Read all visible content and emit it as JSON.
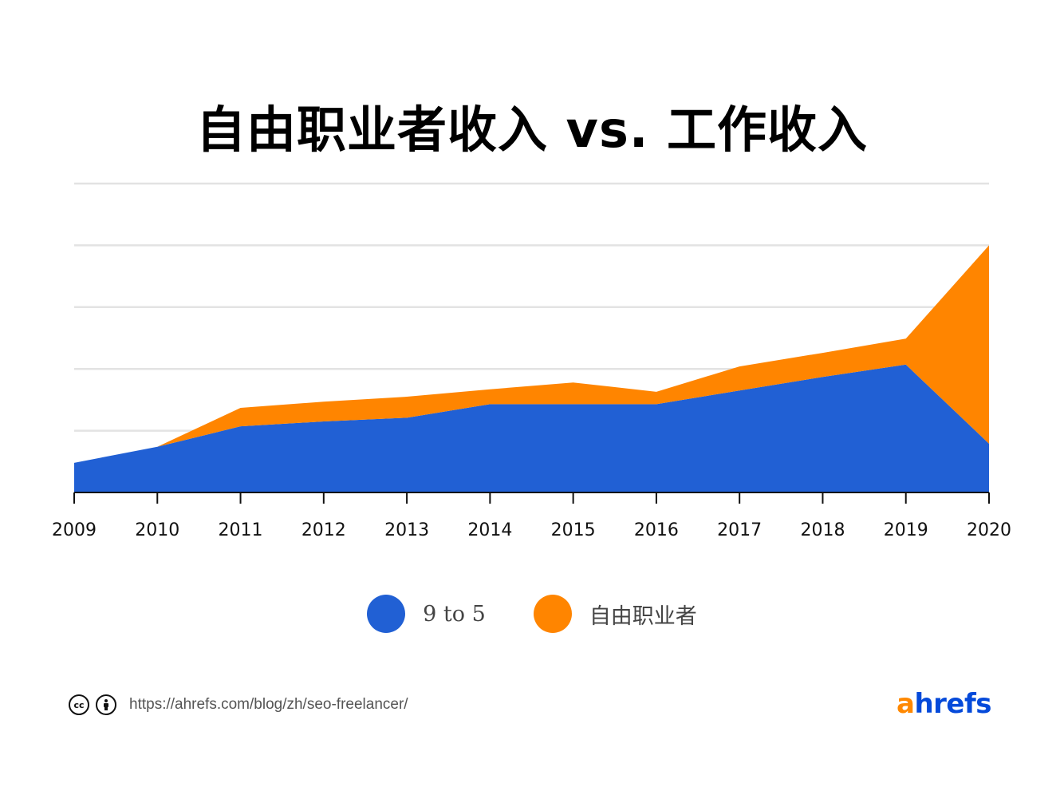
{
  "chart_data": {
    "type": "area",
    "stacked": true,
    "title": "自由职业者收入 vs. 工作收入",
    "xlabel": "",
    "ylabel": "",
    "x": [
      "2009",
      "2010",
      "2011",
      "2012",
      "2013",
      "2014",
      "2015",
      "2016",
      "2017",
      "2018",
      "2019",
      "2020"
    ],
    "series": [
      {
        "name": "9 to 5",
        "color": "#2160d4",
        "values": [
          0.48,
          0.74,
          1.07,
          1.15,
          1.21,
          1.43,
          1.43,
          1.43,
          1.65,
          1.87,
          2.07,
          0.79
        ]
      },
      {
        "name": "自由职业者",
        "color": "#ff8500",
        "values": [
          0.0,
          0.0,
          0.3,
          0.32,
          0.34,
          0.24,
          0.35,
          0.2,
          0.39,
          0.39,
          0.42,
          3.21
        ]
      }
    ],
    "ylim": [
      0,
      5
    ],
    "yticks_shown": false,
    "grid": true,
    "legend": "bottom-center"
  },
  "legend": {
    "items": [
      {
        "label": "9 to 5",
        "color": "#2160d4"
      },
      {
        "label": "自由职业者",
        "color": "#ff8500"
      }
    ]
  },
  "footer": {
    "license_icons": [
      "creative-commons-icon",
      "attribution-icon"
    ],
    "cc_text": "cc",
    "source_url": "https://ahrefs.com/blog/zh/seo-freelancer/",
    "brand_first": "a",
    "brand_rest": "hrefs"
  }
}
